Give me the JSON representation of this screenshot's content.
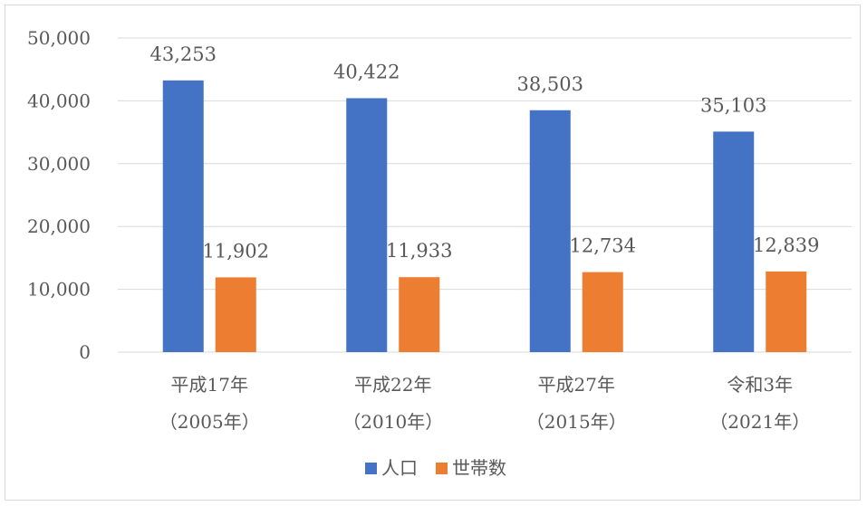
{
  "chart_data": {
    "type": "bar",
    "title": "",
    "xlabel": "",
    "ylabel": "",
    "ylim": [
      0,
      50000
    ],
    "y_ticks": [
      0,
      10000,
      20000,
      30000,
      40000,
      50000
    ],
    "y_tick_labels": [
      "0",
      "10,000",
      "20,000",
      "30,000",
      "40,000",
      "50,000"
    ],
    "grid": true,
    "legend_position": "bottom",
    "categories": [
      {
        "line1": "平成17年",
        "line2": "（2005年）"
      },
      {
        "line1": "平成22年",
        "line2": "（2010年）"
      },
      {
        "line1": "平成27年",
        "line2": "（2015年）"
      },
      {
        "line1": "令和3年",
        "line2": "（2021年）"
      }
    ],
    "series": [
      {
        "name": "人口",
        "color": "#4472c4",
        "values": [
          43253,
          40422,
          38503,
          35103
        ],
        "labels": [
          "43,253",
          "40,422",
          "38,503",
          "35,103"
        ]
      },
      {
        "name": "世帯数",
        "color": "#ed7d31",
        "values": [
          11902,
          11933,
          12734,
          12839
        ],
        "labels": [
          "11,902",
          "11,933",
          "12,734",
          "12,839"
        ]
      }
    ]
  }
}
